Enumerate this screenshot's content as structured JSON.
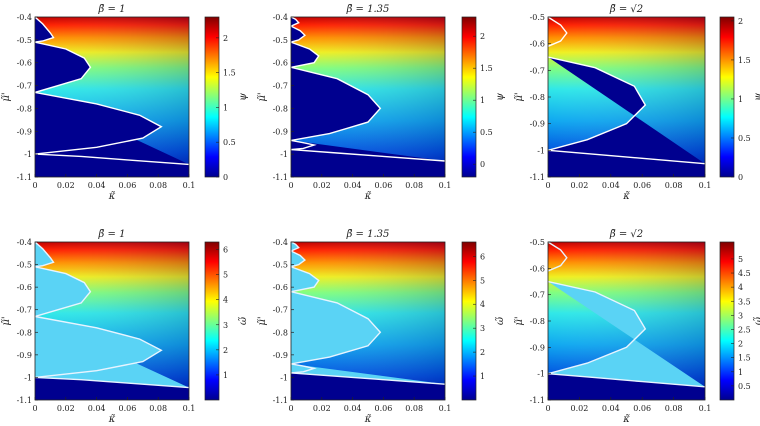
{
  "chart_data": [
    {
      "type": "heatmap",
      "title": "β̃ = 1",
      "xlabel": "κ̃",
      "ylabel": "μ̃'",
      "colorbar_label": "ψ",
      "xlim": [
        0,
        0.1
      ],
      "ylim": [
        -1.1,
        -0.4
      ],
      "xticks": [
        "0",
        "0.02",
        "0.04",
        "0.06",
        "0.08",
        "0.1"
      ],
      "yticks": [
        "-0.4",
        "-0.5",
        "-0.6",
        "-0.7",
        "-0.8",
        "-0.9",
        "-1",
        "-1.1"
      ],
      "zlim": [
        0,
        2.3
      ],
      "cbar_ticks": [
        "0",
        "0.5",
        "1",
        "1.5",
        "2"
      ],
      "colormap": "jet",
      "region_fill": "#00008f",
      "contour_color": "#ffffff",
      "contours": [
        [
          [
            0,
            -0.4
          ],
          [
            0.005,
            -0.43
          ],
          [
            0.01,
            -0.47
          ],
          [
            0.012,
            -0.49
          ],
          [
            0.005,
            -0.505
          ],
          [
            0,
            -0.51
          ]
        ],
        [
          [
            0,
            -0.51
          ],
          [
            0.02,
            -0.54
          ],
          [
            0.032,
            -0.58
          ],
          [
            0.036,
            -0.62
          ],
          [
            0.03,
            -0.67
          ],
          [
            0.015,
            -0.7
          ],
          [
            0,
            -0.73
          ]
        ],
        [
          [
            0,
            -0.73
          ],
          [
            0.04,
            -0.78
          ],
          [
            0.068,
            -0.83
          ],
          [
            0.082,
            -0.88
          ],
          [
            0.07,
            -0.93
          ],
          [
            0.04,
            -0.97
          ],
          [
            0,
            -1.0
          ]
        ],
        [
          [
            0,
            -1.0
          ],
          [
            0.03,
            -1.01
          ],
          [
            0.06,
            -1.025
          ],
          [
            0.1,
            -1.045
          ]
        ]
      ]
    },
    {
      "type": "heatmap",
      "title": "β̃ = 1.35",
      "xlabel": "κ̃",
      "ylabel": "μ̃'",
      "colorbar_label": "ψ",
      "xlim": [
        0,
        0.1
      ],
      "ylim": [
        -1.1,
        -0.4
      ],
      "xticks": [
        "0",
        "0.02",
        "0.04",
        "0.06",
        "0.08",
        "0.1"
      ],
      "yticks": [
        "-0.4",
        "-0.5",
        "-0.6",
        "-0.7",
        "-0.8",
        "-0.9",
        "-1",
        "-1.1"
      ],
      "zlim": [
        -0.2,
        2.3
      ],
      "cbar_ticks": [
        "0",
        "0.5",
        "1",
        "1.5",
        "2"
      ],
      "colormap": "jet",
      "region_fill": "#00008f",
      "contour_color": "#ffffff",
      "contours": [
        [
          [
            0,
            -0.4
          ],
          [
            0.003,
            -0.41
          ],
          [
            0.005,
            -0.425
          ],
          [
            0,
            -0.44
          ]
        ],
        [
          [
            0,
            -0.44
          ],
          [
            0.006,
            -0.46
          ],
          [
            0.009,
            -0.48
          ],
          [
            0.005,
            -0.5
          ],
          [
            0,
            -0.51
          ]
        ],
        [
          [
            0,
            -0.51
          ],
          [
            0.012,
            -0.54
          ],
          [
            0.018,
            -0.57
          ],
          [
            0.015,
            -0.6
          ],
          [
            0,
            -0.62
          ]
        ],
        [
          [
            0,
            -0.62
          ],
          [
            0.03,
            -0.67
          ],
          [
            0.05,
            -0.74
          ],
          [
            0.058,
            -0.8
          ],
          [
            0.05,
            -0.86
          ],
          [
            0.025,
            -0.91
          ],
          [
            0,
            -0.94
          ]
        ],
        [
          [
            0,
            -0.94
          ],
          [
            0.008,
            -0.95
          ],
          [
            0.015,
            -0.96
          ],
          [
            0.008,
            -0.975
          ],
          [
            0,
            -0.98
          ]
        ],
        [
          [
            0,
            -0.98
          ],
          [
            0.03,
            -0.995
          ],
          [
            0.06,
            -1.01
          ],
          [
            0.1,
            -1.03
          ]
        ]
      ]
    },
    {
      "type": "heatmap",
      "title": "β̃ = √2",
      "xlabel": "κ̃",
      "ylabel": "μ̃'",
      "colorbar_label": "ψ",
      "xlim": [
        0,
        0.1
      ],
      "ylim": [
        -1.1,
        -0.5
      ],
      "xticks": [
        "0",
        "0.02",
        "0.04",
        "0.06",
        "0.08",
        "0.1"
      ],
      "yticks": [
        "-0.5",
        "-0.6",
        "-0.7",
        "-0.8",
        "-0.9",
        "-1",
        "-1.1"
      ],
      "zlim": [
        0,
        2.05
      ],
      "cbar_ticks": [
        "0",
        "0.5",
        "1",
        "1.5",
        "2"
      ],
      "colormap": "jet",
      "region_fill": "#00008f",
      "contour_color": "#ffffff",
      "contours": [
        [
          [
            0,
            -0.5
          ],
          [
            0.008,
            -0.53
          ],
          [
            0.012,
            -0.56
          ],
          [
            0.008,
            -0.59
          ],
          [
            0,
            -0.61
          ]
        ],
        [
          [
            0,
            -0.65
          ],
          [
            0.03,
            -0.69
          ],
          [
            0.055,
            -0.76
          ],
          [
            0.062,
            -0.83
          ],
          [
            0.05,
            -0.9
          ],
          [
            0.025,
            -0.96
          ],
          [
            0,
            -1.0
          ]
        ],
        [
          [
            0,
            -1.0
          ],
          [
            0.03,
            -1.015
          ],
          [
            0.06,
            -1.03
          ],
          [
            0.1,
            -1.05
          ]
        ]
      ]
    },
    {
      "type": "heatmap",
      "title": "β̃ = 1",
      "xlabel": "κ̃",
      "ylabel": "μ̃'",
      "colorbar_label": "ω̃",
      "xlim": [
        0,
        0.1
      ],
      "ylim": [
        -1.1,
        -0.4
      ],
      "xticks": [
        "0",
        "0.02",
        "0.04",
        "0.06",
        "0.08",
        "0.1"
      ],
      "yticks": [
        "-0.4",
        "-0.5",
        "-0.6",
        "-0.7",
        "-0.8",
        "-0.9",
        "-1",
        "-1.1"
      ],
      "zlim": [
        0,
        6.3
      ],
      "cbar_ticks": [
        "1",
        "2",
        "3",
        "4",
        "5",
        "6"
      ],
      "colormap": "jet",
      "region_fill": "#5ad3f5",
      "contour_color": "#e8f4ff",
      "contours": [
        [
          [
            0,
            -0.4
          ],
          [
            0.005,
            -0.43
          ],
          [
            0.01,
            -0.47
          ],
          [
            0.012,
            -0.49
          ],
          [
            0.005,
            -0.505
          ],
          [
            0,
            -0.51
          ]
        ],
        [
          [
            0,
            -0.51
          ],
          [
            0.02,
            -0.54
          ],
          [
            0.032,
            -0.58
          ],
          [
            0.036,
            -0.62
          ],
          [
            0.03,
            -0.67
          ],
          [
            0.015,
            -0.7
          ],
          [
            0,
            -0.73
          ]
        ],
        [
          [
            0,
            -0.73
          ],
          [
            0.04,
            -0.78
          ],
          [
            0.068,
            -0.83
          ],
          [
            0.082,
            -0.88
          ],
          [
            0.07,
            -0.93
          ],
          [
            0.04,
            -0.97
          ],
          [
            0,
            -1.0
          ]
        ],
        [
          [
            0,
            -1.0
          ],
          [
            0.03,
            -1.01
          ],
          [
            0.06,
            -1.025
          ],
          [
            0.1,
            -1.045
          ]
        ]
      ]
    },
    {
      "type": "heatmap",
      "title": "β̃ = 1.35",
      "xlabel": "κ̃",
      "ylabel": "μ̃'",
      "colorbar_label": "ω̃",
      "xlim": [
        0,
        0.1
      ],
      "ylim": [
        -1.1,
        -0.4
      ],
      "xticks": [
        "0",
        "0.02",
        "0.04",
        "0.06",
        "0.08",
        "0.1"
      ],
      "yticks": [
        "-0.4",
        "-0.5",
        "-0.6",
        "-0.7",
        "-0.8",
        "-0.9",
        "-1",
        "-1.1"
      ],
      "zlim": [
        0,
        6.6
      ],
      "cbar_ticks": [
        "1",
        "2",
        "3",
        "4",
        "5",
        "6"
      ],
      "colormap": "jet",
      "region_fill": "#5ad3f5",
      "contour_color": "#e8f4ff",
      "contours": [
        [
          [
            0,
            -0.4
          ],
          [
            0.003,
            -0.41
          ],
          [
            0.005,
            -0.425
          ],
          [
            0,
            -0.44
          ]
        ],
        [
          [
            0,
            -0.44
          ],
          [
            0.006,
            -0.46
          ],
          [
            0.009,
            -0.48
          ],
          [
            0.005,
            -0.5
          ],
          [
            0,
            -0.51
          ]
        ],
        [
          [
            0,
            -0.51
          ],
          [
            0.012,
            -0.54
          ],
          [
            0.018,
            -0.57
          ],
          [
            0.015,
            -0.6
          ],
          [
            0,
            -0.62
          ]
        ],
        [
          [
            0,
            -0.62
          ],
          [
            0.03,
            -0.67
          ],
          [
            0.05,
            -0.74
          ],
          [
            0.058,
            -0.8
          ],
          [
            0.05,
            -0.86
          ],
          [
            0.025,
            -0.91
          ],
          [
            0,
            -0.94
          ]
        ],
        [
          [
            0,
            -0.94
          ],
          [
            0.008,
            -0.95
          ],
          [
            0.015,
            -0.96
          ],
          [
            0.008,
            -0.975
          ],
          [
            0,
            -0.98
          ]
        ],
        [
          [
            0,
            -0.98
          ],
          [
            0.03,
            -0.995
          ],
          [
            0.06,
            -1.01
          ],
          [
            0.1,
            -1.03
          ]
        ]
      ]
    },
    {
      "type": "heatmap",
      "title": "β̃ = √2",
      "xlabel": "κ̃",
      "ylabel": "μ̃'",
      "colorbar_label": "ω̃",
      "xlim": [
        0,
        0.1
      ],
      "ylim": [
        -1.1,
        -0.5
      ],
      "xticks": [
        "0",
        "0.02",
        "0.04",
        "0.06",
        "0.08",
        "0.1"
      ],
      "yticks": [
        "-0.5",
        "-0.6",
        "-0.7",
        "-0.8",
        "-0.9",
        "-1",
        "-1.1"
      ],
      "zlim": [
        0,
        5.6
      ],
      "cbar_ticks": [
        "0.5",
        "1",
        "1.5",
        "2",
        "2.5",
        "3",
        "3.5",
        "4",
        "4.5",
        "5"
      ],
      "colormap": "jet",
      "region_fill": "#5ad3f5",
      "contour_color": "#e8f4ff",
      "contours": [
        [
          [
            0,
            -0.5
          ],
          [
            0.008,
            -0.53
          ],
          [
            0.012,
            -0.56
          ],
          [
            0.008,
            -0.59
          ],
          [
            0,
            -0.61
          ]
        ],
        [
          [
            0,
            -0.65
          ],
          [
            0.03,
            -0.69
          ],
          [
            0.055,
            -0.76
          ],
          [
            0.062,
            -0.83
          ],
          [
            0.05,
            -0.9
          ],
          [
            0.025,
            -0.96
          ],
          [
            0,
            -1.0
          ]
        ],
        [
          [
            0,
            -1.0
          ],
          [
            0.03,
            -1.015
          ],
          [
            0.06,
            -1.03
          ],
          [
            0.1,
            -1.05
          ]
        ]
      ]
    }
  ]
}
